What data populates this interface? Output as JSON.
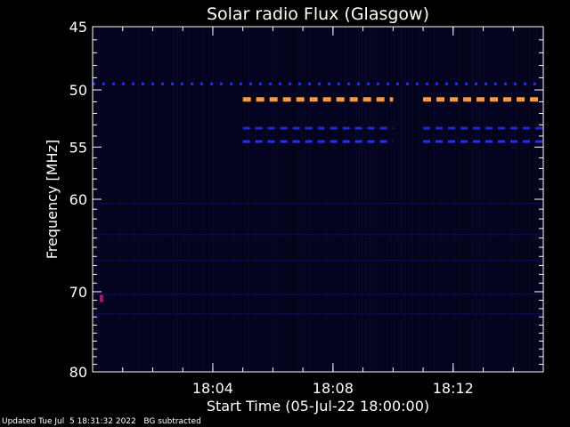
{
  "chart_data": {
    "type": "heatmap",
    "title": "Solar radio Flux (Glasgow)",
    "xlabel": "Start Time (05-Jul-22 18:00:00)",
    "ylabel": "Frequency [MHz]",
    "x_unit": "time",
    "x_ticks": [
      "18:04",
      "18:08",
      "18:12"
    ],
    "x_range": [
      "18:00",
      "18:15"
    ],
    "y_ticks": [
      45,
      50,
      55,
      60,
      70,
      80
    ],
    "y_range": [
      45,
      80
    ],
    "y_scale": "log",
    "y_inverted": true,
    "background": "BG subtracted",
    "features": [
      {
        "kind": "dashed-line",
        "freq_mhz": 49.5,
        "t_start": "18:00",
        "t_end": "18:15",
        "color": "#1f2bff"
      },
      {
        "kind": "dashed-line",
        "freq_mhz": 50.8,
        "t_start": "18:05",
        "t_end": "18:10",
        "color": "#ff9a3c"
      },
      {
        "kind": "dashed-line",
        "freq_mhz": 50.8,
        "t_start": "18:11",
        "t_end": "18:15",
        "color": "#ff9a3c"
      },
      {
        "kind": "dashed-line",
        "freq_mhz": 53.3,
        "t_start": "18:05",
        "t_end": "18:10",
        "color": "#1a2cd8"
      },
      {
        "kind": "dashed-line",
        "freq_mhz": 53.3,
        "t_start": "18:11",
        "t_end": "18:15",
        "color": "#1a2cd8"
      },
      {
        "kind": "dashed-line",
        "freq_mhz": 54.5,
        "t_start": "18:05",
        "t_end": "18:10",
        "color": "#1b33ff"
      },
      {
        "kind": "dashed-line",
        "freq_mhz": 54.5,
        "t_start": "18:11",
        "t_end": "18:15",
        "color": "#1b33ff"
      },
      {
        "kind": "spot",
        "freq_mhz": 70.8,
        "t_start": "18:00",
        "t_end": "18:00",
        "color": "#b01070"
      }
    ]
  },
  "footer": {
    "updated": "Updated Tue Jul  5 18:31:32 2022",
    "bg": "BG subtracted"
  }
}
